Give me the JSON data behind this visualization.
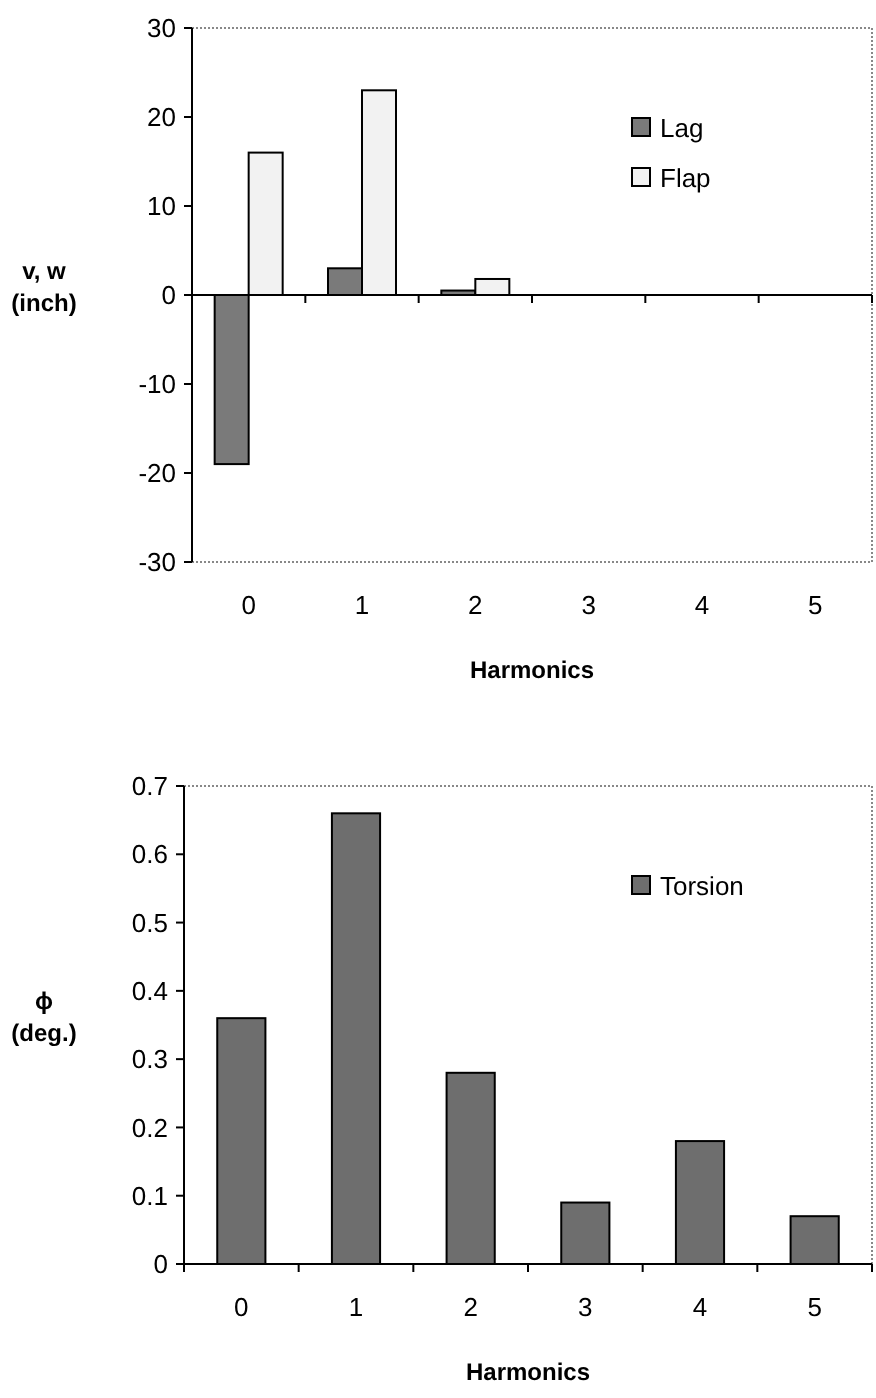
{
  "chart_data": [
    {
      "type": "bar",
      "categories": [
        "0",
        "1",
        "2",
        "3",
        "4",
        "5"
      ],
      "xlabel": "Harmonics",
      "ylabel": "v, w\n(inch)",
      "ylim": [
        -30,
        30
      ],
      "yticks": [
        -30,
        -20,
        -10,
        0,
        10,
        20,
        30
      ],
      "legend": "top right",
      "series": [
        {
          "name": "Lag",
          "color": "#7a7a7a",
          "values": [
            -19,
            3,
            0.5,
            0,
            0,
            0
          ]
        },
        {
          "name": "Flap",
          "color": "#f2f2f2",
          "values": [
            16,
            23,
            1.8,
            0,
            0,
            0
          ]
        }
      ]
    },
    {
      "type": "bar",
      "categories": [
        "0",
        "1",
        "2",
        "3",
        "4",
        "5"
      ],
      "xlabel": "Harmonics",
      "ylabel": "ϕ\n(deg.)",
      "ylim": [
        0,
        0.7
      ],
      "yticks": [
        0,
        0.1,
        0.2,
        0.3,
        0.4,
        0.5,
        0.6,
        0.7
      ],
      "legend": "top right",
      "series": [
        {
          "name": "Torsion",
          "color": "#6e6e6e",
          "values": [
            0.36,
            0.66,
            0.28,
            0.09,
            0.18,
            0.07
          ]
        }
      ]
    }
  ]
}
